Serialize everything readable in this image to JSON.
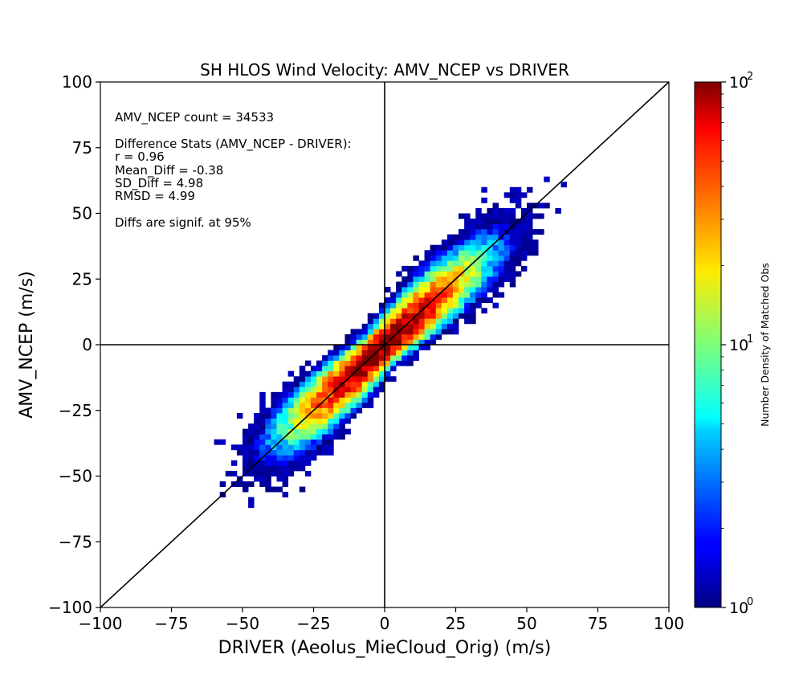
{
  "chart_data": {
    "type": "heatmap",
    "title": "SH HLOS Wind Velocity: AMV_NCEP vs DRIVER",
    "xlabel": "DRIVER (Aeolus_MieCloud_Orig) (m/s)",
    "ylabel": "AMV_NCEP (m/s)",
    "xlim": [
      -100,
      100
    ],
    "ylim": [
      -100,
      100
    ],
    "x_ticks": [
      "−100",
      "−75",
      "−50",
      "−25",
      "0",
      "25",
      "50",
      "75",
      "100"
    ],
    "y_ticks": [
      "−100",
      "−75",
      "−50",
      "−25",
      "0",
      "25",
      "50",
      "75",
      "100"
    ],
    "x_tick_values": [
      -100,
      -75,
      -50,
      -25,
      0,
      25,
      50,
      75,
      100
    ],
    "y_tick_values": [
      -100,
      -75,
      -50,
      -25,
      0,
      25,
      50,
      75,
      100
    ],
    "reference_lines": [
      "y = x",
      "x = 0",
      "y = 0"
    ],
    "bin_size": 2,
    "density_model": {
      "center_x": -2,
      "center_y": -2,
      "sigma_along": 20,
      "sigma_across": 2.9,
      "peak": 110,
      "x_range": [
        -62,
        80
      ]
    },
    "annotations": [
      "AMV_NCEP count = 34533",
      "Difference Stats (AMV_NCEP - DRIVER):",
      "r = 0.96",
      "Mean_Diff = -0.38",
      "SD_Diff = 4.98",
      "RMSD = 4.99",
      "Diffs are signif. at 95%"
    ],
    "colorbar": {
      "label": "Number Density of Matched Obs",
      "scale": "log",
      "range": [
        1,
        100
      ],
      "colormap": "jet",
      "tick_values": [
        1,
        10,
        100
      ],
      "tick_base": "10",
      "tick_exponents": [
        "0",
        "1",
        "2"
      ]
    }
  }
}
